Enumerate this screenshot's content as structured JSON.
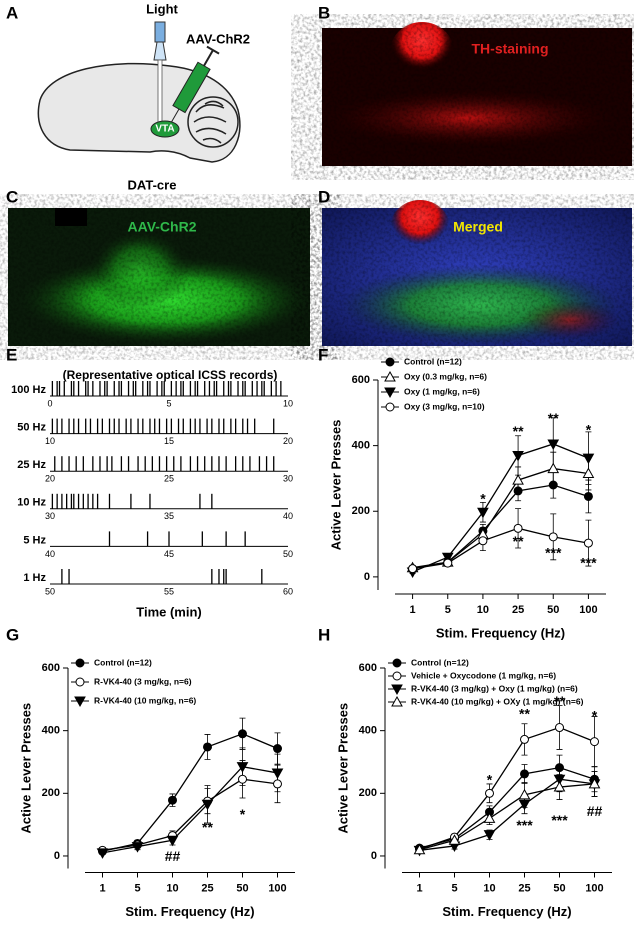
{
  "panel_labels": [
    "A",
    "B",
    "C",
    "D",
    "E",
    "F",
    "G",
    "H"
  ],
  "panel_a": {
    "light": "Light",
    "virus": "AAV-ChR2",
    "region": "VTA",
    "mouse": "DAT-cre"
  },
  "panel_b": {
    "label": "TH-staining"
  },
  "panel_c": {
    "label": "AAV-ChR2"
  },
  "panel_d": {
    "label": "Merged"
  },
  "chart_data": [
    {
      "type": "raster",
      "title": "(Representative optical ICSS records)",
      "x_label": "Time (min)",
      "rows": [
        {
          "name": "100 Hz",
          "xlim": [
            0,
            10
          ],
          "xticks": [
            0,
            5,
            10
          ],
          "events": [
            0.1,
            0.3,
            0.4,
            0.6,
            0.9,
            1.0,
            1.2,
            1.5,
            1.6,
            1.8,
            2.1,
            2.3,
            2.4,
            2.7,
            2.9,
            3.0,
            3.3,
            3.5,
            3.6,
            3.9,
            4.1,
            4.2,
            4.5,
            4.7,
            4.8,
            5.1,
            5.3,
            5.5,
            5.6,
            5.9,
            6.1,
            6.2,
            6.5,
            6.7,
            6.9,
            7.0,
            7.3,
            7.5,
            7.6,
            7.9,
            8.1,
            8.2,
            8.5,
            8.7,
            8.9,
            9.0,
            9.3,
            9.5,
            9.7
          ]
        },
        {
          "name": "50 Hz",
          "xlim": [
            10,
            20
          ],
          "xticks": [
            10,
            15,
            20
          ],
          "events": [
            10.1,
            10.3,
            10.5,
            10.8,
            11.0,
            11.2,
            11.5,
            11.7,
            12.0,
            12.2,
            12.5,
            12.7,
            12.9,
            13.2,
            13.4,
            13.7,
            13.9,
            14.2,
            14.4,
            14.6,
            14.9,
            15.1,
            15.4,
            15.6,
            15.9,
            16.1,
            16.3,
            16.6,
            16.8,
            17.1,
            17.3,
            17.6,
            17.8,
            18.1,
            18.3,
            18.6,
            19.4
          ]
        },
        {
          "name": "25 Hz",
          "xlim": [
            20,
            30
          ],
          "xticks": [
            20,
            25,
            30
          ],
          "events": [
            20.2,
            20.5,
            20.8,
            21.1,
            21.4,
            21.8,
            22.1,
            22.4,
            22.6,
            23.0,
            23.3,
            23.7,
            24.0,
            24.3,
            24.6,
            24.9,
            25.2,
            25.5,
            25.9,
            26.2,
            26.5,
            26.8,
            27.1,
            27.4,
            27.8,
            28.1,
            28.4,
            28.8,
            29.1,
            29.4
          ]
        },
        {
          "name": "10 Hz",
          "xlim": [
            30,
            40
          ],
          "xticks": [
            30,
            35,
            40
          ],
          "events": [
            30.1,
            30.3,
            30.5,
            30.7,
            30.9,
            31.0,
            31.2,
            31.4,
            31.6,
            31.8,
            32.0,
            32.5,
            33.4,
            34.2,
            36.3,
            36.8
          ]
        },
        {
          "name": "5 Hz",
          "xlim": [
            40,
            50
          ],
          "xticks": [
            40,
            45,
            50
          ],
          "events": [
            42.5,
            44.1,
            45.0,
            46.4,
            47.4,
            48.2
          ]
        },
        {
          "name": "1 Hz",
          "xlim": [
            50,
            60
          ],
          "xticks": [
            50,
            55,
            60
          ],
          "events": [
            50.5,
            50.8,
            56.8,
            57.1,
            57.3,
            57.4,
            58.9
          ]
        }
      ]
    },
    {
      "type": "line",
      "categories": [
        "1",
        "5",
        "10",
        "25",
        "50",
        "100"
      ],
      "x_label": "Stim. Frequency (Hz)",
      "y_label": "Active Lever Presses",
      "ylim": [
        -40,
        600
      ],
      "yticks": [
        0,
        200,
        400,
        600
      ],
      "series": [
        {
          "name": "Control (n=12)",
          "color": "#000000",
          "marker": "circle",
          "filled": true,
          "values": [
            25,
            45,
            140,
            262,
            280,
            245
          ],
          "errors": [
            5,
            10,
            20,
            30,
            40,
            50
          ]
        },
        {
          "name": "Oxy (0.3 mg/kg, n=6)",
          "color": "#000000",
          "marker": "triangle-up",
          "filled": false,
          "values": [
            28,
            45,
            130,
            295,
            330,
            315
          ],
          "errors": [
            5,
            10,
            20,
            40,
            50,
            50
          ]
        },
        {
          "name": "Oxy (1 mg/kg, n=6)",
          "color": "#000000",
          "marker": "triangle-down",
          "filled": true,
          "values": [
            15,
            60,
            197,
            370,
            405,
            362
          ],
          "errors": [
            5,
            10,
            30,
            60,
            80,
            80
          ]
        },
        {
          "name": "Oxy (3 mg/kg, n=10)",
          "color": "#000000",
          "marker": "circle",
          "filled": false,
          "values": [
            25,
            42,
            110,
            148,
            122,
            103
          ],
          "errors": [
            5,
            10,
            30,
            60,
            70,
            70
          ]
        }
      ],
      "annotations": [
        {
          "text": "*",
          "x": "10",
          "y": 235
        },
        {
          "text": "**",
          "x": "25",
          "y": 440
        },
        {
          "text": "**",
          "x": "50",
          "y": 480
        },
        {
          "text": "*",
          "x": "100",
          "y": 445
        },
        {
          "text": "**",
          "x": "25",
          "y": 105
        },
        {
          "text": "***",
          "x": "50",
          "y": 70
        },
        {
          "text": "***",
          "x": "100",
          "y": 40
        }
      ]
    },
    {
      "type": "line",
      "categories": [
        "1",
        "5",
        "10",
        "25",
        "50",
        "100"
      ],
      "x_label": "Stim. Frequency (Hz)",
      "y_label": "Active Lever Presses",
      "ylim": [
        -40,
        600
      ],
      "yticks": [
        0,
        200,
        400,
        600
      ],
      "series": [
        {
          "name": "Control (n=12)",
          "color": "#000000",
          "marker": "circle",
          "filled": true,
          "values": [
            15,
            40,
            178,
            348,
            390,
            343
          ],
          "errors": [
            5,
            10,
            20,
            40,
            50,
            50
          ]
        },
        {
          "name": "R-VK4-40 (3 mg/kg, n=6)",
          "color": "#000000",
          "marker": "circle",
          "filled": false,
          "values": [
            18,
            35,
            65,
            175,
            245,
            230
          ],
          "errors": [
            5,
            10,
            15,
            40,
            60,
            60
          ]
        },
        {
          "name": "R-VK4-40 (10 mg/kg, n=6)",
          "color": "#000000",
          "marker": "triangle-down",
          "filled": true,
          "values": [
            10,
            30,
            50,
            165,
            285,
            265
          ],
          "errors": [
            5,
            10,
            15,
            60,
            60,
            60
          ]
        }
      ],
      "annotations": [
        {
          "text": "##",
          "x": "10",
          "y": -5
        },
        {
          "text": "**",
          "x": "25",
          "y": 89
        },
        {
          "text": "*",
          "x": "50",
          "y": 130
        }
      ]
    },
    {
      "type": "line",
      "categories": [
        "1",
        "5",
        "10",
        "25",
        "50",
        "100"
      ],
      "x_label": "Stim. Frequency (Hz)",
      "y_label": "Active Lever Presses",
      "ylim": [
        -40,
        600
      ],
      "yticks": [
        0,
        200,
        400,
        600
      ],
      "series": [
        {
          "name": "Control (n=12)",
          "color": "#000000",
          "marker": "circle",
          "filled": true,
          "values": [
            25,
            55,
            140,
            262,
            282,
            245
          ],
          "errors": [
            5,
            10,
            20,
            30,
            40,
            40
          ]
        },
        {
          "name": "Vehicle + Oxycodone (1 mg/kg, n=6)",
          "color": "#000000",
          "marker": "circle",
          "filled": false,
          "values": [
            22,
            60,
            200,
            372,
            410,
            365
          ],
          "errors": [
            5,
            10,
            30,
            50,
            70,
            80
          ]
        },
        {
          "name": "R-VK4-40 (3 mg/kg) + Oxy (1 mg/kg) (n=6)",
          "color": "#000000",
          "marker": "triangle-down",
          "filled": true,
          "values": [
            18,
            32,
            68,
            165,
            245,
            230
          ],
          "errors": [
            5,
            10,
            15,
            30,
            40,
            40
          ]
        },
        {
          "name": "R-VK4-40 (10 mg/kg) + OXy (1 mg/kg) (n=6)",
          "color": "#000000",
          "marker": "triangle-up",
          "filled": false,
          "values": [
            20,
            50,
            120,
            195,
            220,
            230
          ],
          "errors": [
            5,
            10,
            20,
            40,
            40,
            40
          ]
        }
      ],
      "annotations": [
        {
          "text": "*",
          "x": "10",
          "y": 240
        },
        {
          "text": "**",
          "x": "25",
          "y": 450
        },
        {
          "text": "**",
          "x": "50",
          "y": 490
        },
        {
          "text": "*",
          "x": "100",
          "y": 445
        },
        {
          "text": "***",
          "x": "25",
          "y": 95
        },
        {
          "text": "***",
          "x": "50",
          "y": 110
        },
        {
          "text": "##",
          "x": "100",
          "y": 140
        }
      ]
    }
  ]
}
